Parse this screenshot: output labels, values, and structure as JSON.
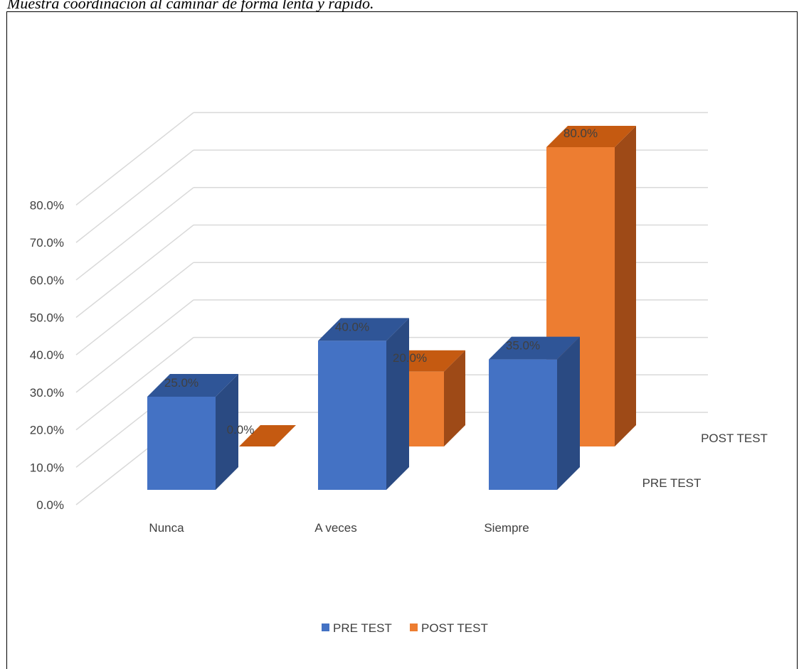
{
  "caption": "Muestra coordinación al caminar de forma lenta y rápido.",
  "chart_data": {
    "type": "bar",
    "categories": [
      "Nunca",
      "A veces",
      "Siempre"
    ],
    "series": [
      {
        "name": "PRE TEST",
        "values": [
          25.0,
          40.0,
          35.0
        ],
        "labels": [
          "25.0%",
          "40.0%",
          "35.0%"
        ]
      },
      {
        "name": "POST TEST",
        "values": [
          0.0,
          20.0,
          80.0
        ],
        "labels": [
          "0.0%",
          "20.0%",
          "80.0%"
        ]
      }
    ],
    "y_ticks": [
      "0.0%",
      "10.0%",
      "20.0%",
      "30.0%",
      "40.0%",
      "50.0%",
      "60.0%",
      "70.0%",
      "80.0%"
    ],
    "ylim": [
      0,
      80
    ],
    "depth_axis": [
      "PRE TEST",
      "POST TEST"
    ],
    "legend_position": "bottom",
    "grid": true,
    "colors": {
      "pre_front": "#4472C4",
      "pre_top": "#2F5597",
      "pre_side": "#2A4A82",
      "post_front": "#ED7D31",
      "post_top": "#C55A11",
      "post_side": "#9E4A17",
      "grid": "#D9D9D9"
    }
  }
}
